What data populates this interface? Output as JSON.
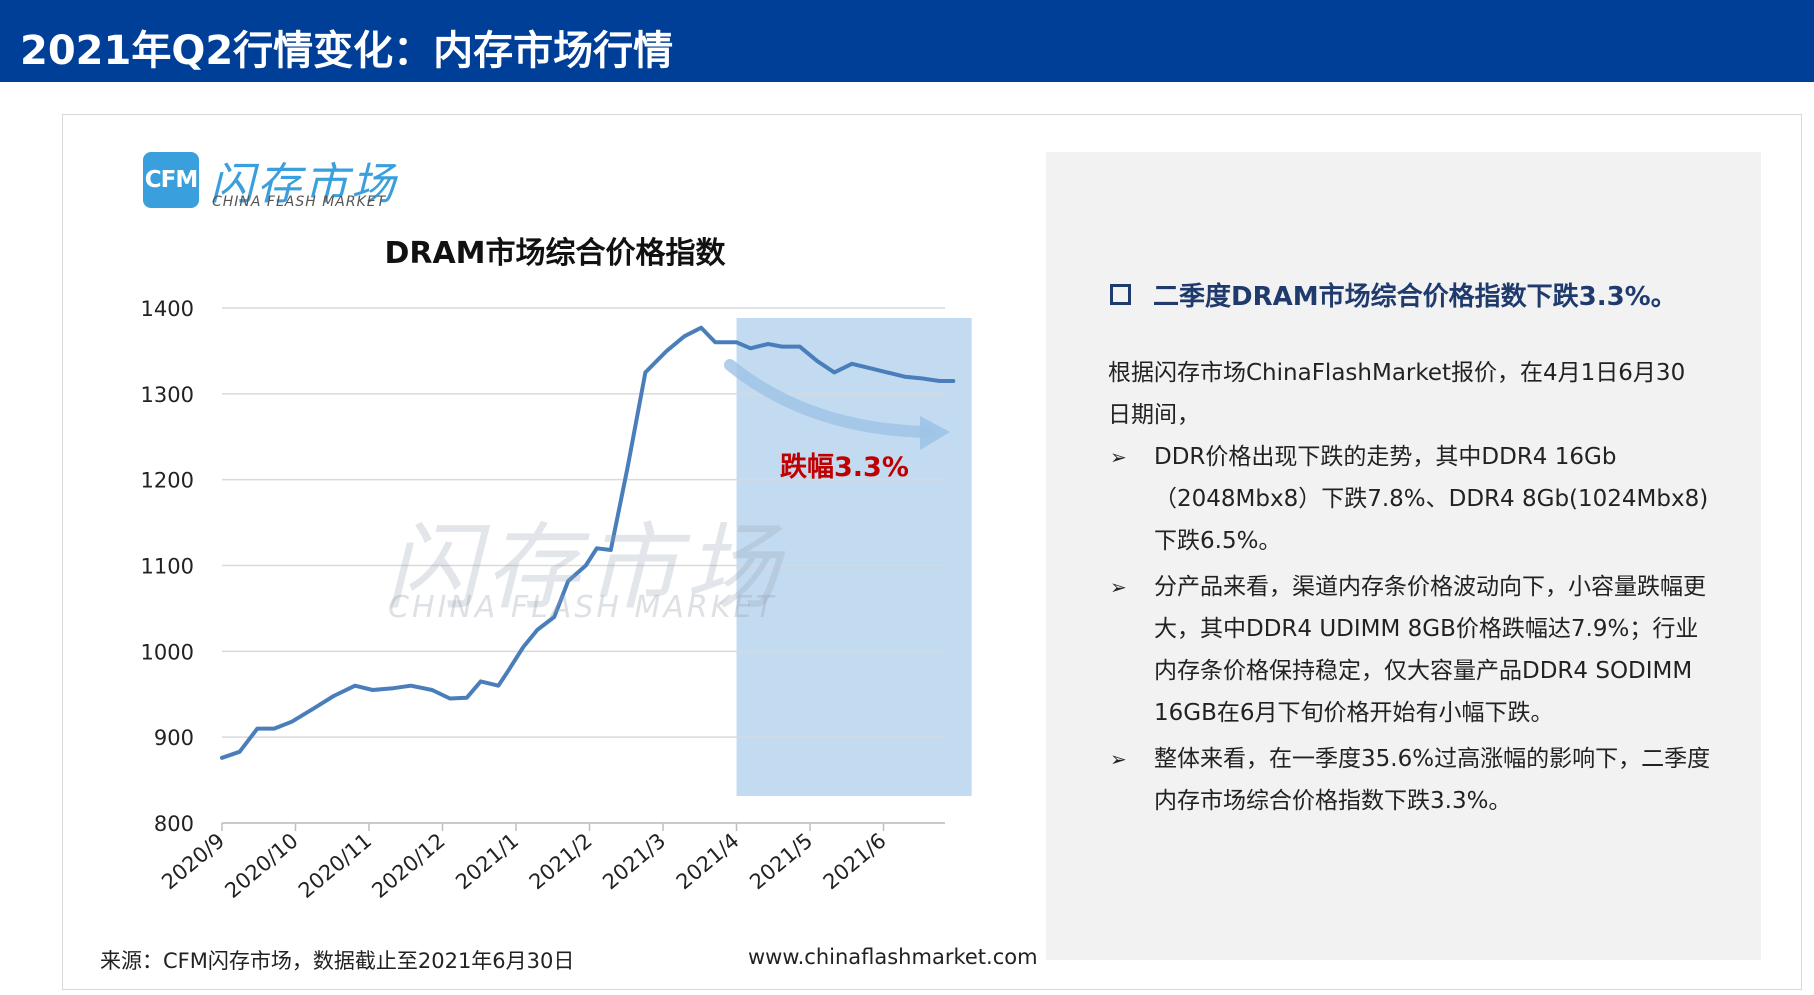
{
  "header": {
    "title": "2021年Q2行情变化：内存市场行情"
  },
  "logo": {
    "badge": "CFM",
    "name_cn": "闪存市场",
    "name_en": "CHINA FLASH MARKET"
  },
  "watermark": {
    "cn": "闪存市场",
    "en": "CHINA FLASH MARKET"
  },
  "chart_data": {
    "type": "line",
    "title": "DRAM市场综合价格指数",
    "xlabel": "",
    "ylabel": "",
    "ylim": [
      800,
      1400
    ],
    "yticks": [
      800,
      900,
      1000,
      1100,
      1200,
      1300,
      1400
    ],
    "xticks": [
      "2020/9",
      "2020/10",
      "2020/11",
      "2020/12",
      "2021/1",
      "2021/2",
      "2021/3",
      "2021/4",
      "2021/5",
      "2021/6"
    ],
    "x_range": [
      0,
      9.95
    ],
    "grid": "horizontal",
    "line_color": "#4a7ebb",
    "highlight_color": "#bdd7ee",
    "highlight_range": [
      7.0,
      10.2
    ],
    "annotation": "跌幅3.3%",
    "series": [
      {
        "x": [
          0,
          0.24,
          0.48,
          0.71,
          0.95,
          1.24,
          1.52,
          1.81,
          2.05,
          2.33,
          2.57,
          2.86,
          3.1,
          3.33,
          3.52,
          3.76,
          3.9,
          4.1,
          4.29,
          4.52,
          4.71,
          4.95,
          5.1,
          5.29,
          5.52,
          5.76,
          6.05,
          6.29,
          6.52,
          6.71,
          7.0,
          7.19,
          7.43,
          7.62,
          7.86,
          8.1,
          8.33,
          8.57,
          8.81,
          9.05,
          9.29,
          9.52,
          9.76,
          9.95
        ],
        "values": [
          876,
          883,
          910,
          910,
          918,
          933,
          948,
          960,
          955,
          957,
          960,
          955,
          945,
          946,
          965,
          960,
          978,
          1005,
          1025,
          1040,
          1082,
          1100,
          1120,
          1118,
          1215,
          1325,
          1350,
          1367,
          1377,
          1360,
          1360,
          1353,
          1358,
          1355,
          1355,
          1338,
          1325,
          1335,
          1330,
          1325,
          1320,
          1318,
          1315,
          1315
        ]
      }
    ]
  },
  "footer": {
    "source": "来源：CFM闪存市场，数据截止至2021年6月30日",
    "website": "www.chinaflashmarket.com"
  },
  "panel": {
    "heading": "二季度DRAM市场综合价格指数下跌3.3%。",
    "intro": "根据闪存市场ChinaFlashMarket报价，在4月1日6月30日期间，",
    "bullets": [
      "DDR价格出现下跌的走势，其中DDR4 16Gb（2048Mbx8）下跌7.8%、DDR4 8Gb(1024Mbx8)下跌6.5%。",
      "分产品来看，渠道内存条价格波动向下，小容量跌幅更大，其中DDR4 UDIMM 8GB价格跌幅达7.9%；行业内存条价格保持稳定，仅大容量产品DDR4 SODIMM 16GB在6月下旬价格开始有小幅下跌。",
      "整体来看，在一季度35.6%过高涨幅的影响下，二季度内存市场综合价格指数下跌3.3%。"
    ]
  }
}
